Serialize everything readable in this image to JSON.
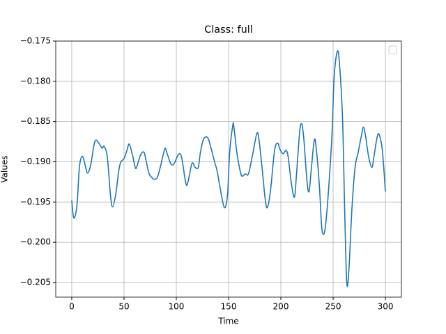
{
  "chart_data": {
    "type": "line",
    "title": "Class: full",
    "x_label": "Time",
    "y_label": "Values",
    "x": [
      0,
      2,
      5,
      7.3,
      10,
      13,
      15,
      18,
      21,
      23,
      26,
      29,
      31,
      34,
      37,
      39,
      42,
      45,
      47,
      50,
      53,
      55,
      58,
      61,
      63,
      66,
      69,
      71,
      74,
      77,
      79,
      82,
      85,
      89,
      91,
      95,
      98,
      102,
      105,
      109,
      111,
      115,
      118,
      121,
      123,
      126,
      130,
      133,
      137,
      139,
      142,
      146,
      149,
      151,
      154,
      155,
      158,
      161,
      163,
      166,
      169,
      173,
      177,
      179,
      182,
      185,
      187,
      190,
      194,
      197,
      199,
      202,
      205,
      207,
      210,
      213,
      215,
      218,
      220,
      222,
      225,
      227,
      229,
      232,
      234,
      237,
      239,
      241,
      243,
      246,
      249,
      251,
      254,
      256,
      259,
      261,
      263,
      265,
      268,
      271,
      274,
      277,
      279,
      281,
      284,
      287,
      289,
      292,
      294,
      297,
      300
    ],
    "series": [
      {
        "color": "#1f77b4",
        "values": [
          -0.1948,
          -0.197,
          -0.1954,
          -0.1907,
          -0.1893,
          -0.1905,
          -0.1914,
          -0.1905,
          -0.1881,
          -0.1873,
          -0.1877,
          -0.1883,
          -0.1881,
          -0.1894,
          -0.1941,
          -0.1956,
          -0.1941,
          -0.1911,
          -0.19,
          -0.1896,
          -0.1885,
          -0.1878,
          -0.1891,
          -0.1908,
          -0.1903,
          -0.1891,
          -0.1888,
          -0.1898,
          -0.1915,
          -0.192,
          -0.1922,
          -0.1919,
          -0.1905,
          -0.1884,
          -0.1889,
          -0.1903,
          -0.1902,
          -0.1891,
          -0.1894,
          -0.1926,
          -0.1926,
          -0.1902,
          -0.1907,
          -0.1907,
          -0.1889,
          -0.1872,
          -0.187,
          -0.1882,
          -0.1902,
          -0.1911,
          -0.1933,
          -0.1957,
          -0.1941,
          -0.1889,
          -0.1855,
          -0.1856,
          -0.1889,
          -0.1911,
          -0.1918,
          -0.1915,
          -0.1915,
          -0.1891,
          -0.1865,
          -0.1872,
          -0.1907,
          -0.1946,
          -0.1957,
          -0.1937,
          -0.1886,
          -0.1877,
          -0.1884,
          -0.189,
          -0.1886,
          -0.1894,
          -0.1926,
          -0.1944,
          -0.1915,
          -0.1863,
          -0.1853,
          -0.1872,
          -0.1924,
          -0.1937,
          -0.1911,
          -0.1873,
          -0.1885,
          -0.1933,
          -0.198,
          -0.199,
          -0.1976,
          -0.1928,
          -0.1863,
          -0.1794,
          -0.1763,
          -0.1777,
          -0.1846,
          -0.1958,
          -0.2049,
          -0.2036,
          -0.1958,
          -0.1907,
          -0.1888,
          -0.1868,
          -0.1857,
          -0.1868,
          -0.1894,
          -0.1907,
          -0.1894,
          -0.187,
          -0.1866,
          -0.1885,
          -0.1937
        ]
      }
    ],
    "xlim": [
      -15.3,
      315.3
    ],
    "xticks": [
      0,
      50,
      100,
      150,
      200,
      250,
      300
    ],
    "ylim": [
      -0.20682,
      -0.175
    ],
    "yticks": [
      {
        "value": -0.205,
        "label": "−0.205"
      },
      {
        "value": -0.2,
        "label": "−0.200"
      },
      {
        "value": -0.195,
        "label": "−0.195"
      },
      {
        "value": -0.19,
        "label": "−0.190"
      },
      {
        "value": -0.185,
        "label": "−0.185"
      },
      {
        "value": -0.18,
        "label": "−0.180"
      },
      {
        "value": -0.175,
        "label": "−0.175"
      }
    ],
    "grid": true,
    "legend": "upper right"
  }
}
